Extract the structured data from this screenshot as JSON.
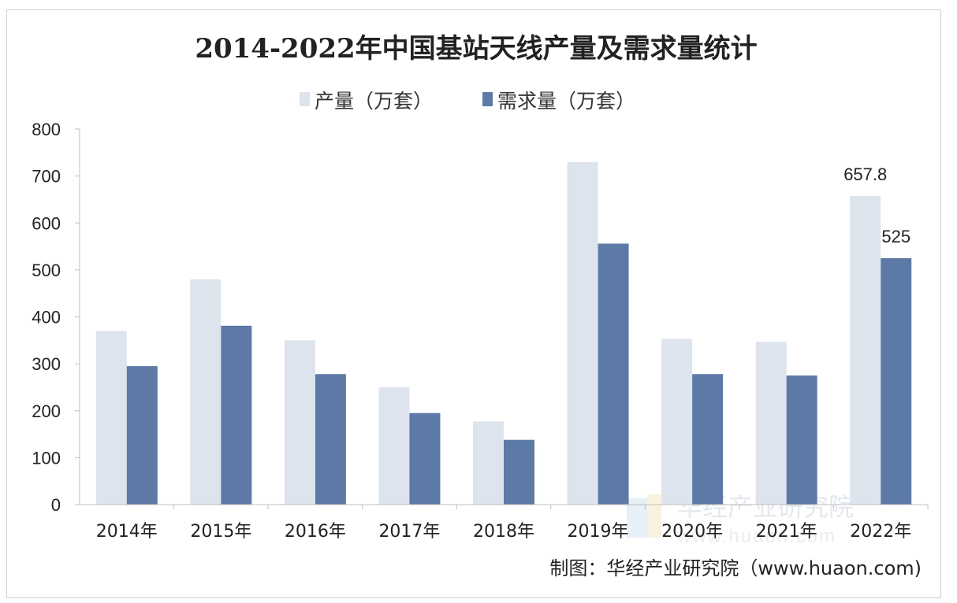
{
  "watermark": {
    "cn": "华经产业研究院",
    "en": "www.huaon.com"
  },
  "source": "制图：华经产业研究院（www.huaon.com)",
  "colors": {
    "production": "#dde4ee",
    "demand": "#5d7aa6",
    "axis": "#bfbfbf"
  },
  "chart_data": {
    "type": "bar",
    "title": "2014-2022年中国基站天线产量及需求量统计",
    "categories": [
      "2014年",
      "2015年",
      "2016年",
      "2017年",
      "2018年",
      "2019年",
      "2020年",
      "2021年",
      "2022年"
    ],
    "series": [
      {
        "name": "产量（万套）",
        "values": [
          370,
          480,
          350,
          250,
          177,
          730,
          353,
          347,
          657.8
        ],
        "data_labels": [
          null,
          null,
          null,
          null,
          null,
          null,
          null,
          null,
          "657.8"
        ]
      },
      {
        "name": "需求量（万套）",
        "values": [
          295,
          381,
          278,
          195,
          138,
          556,
          278,
          275,
          525
        ],
        "data_labels": [
          null,
          null,
          null,
          null,
          null,
          null,
          null,
          null,
          "525"
        ]
      }
    ],
    "ylim": [
      0,
      800
    ],
    "yticks": [
      0,
      100,
      200,
      300,
      400,
      500,
      600,
      700,
      800
    ],
    "xlabel": "",
    "ylabel": "",
    "legend": "top-center",
    "grid": false
  }
}
